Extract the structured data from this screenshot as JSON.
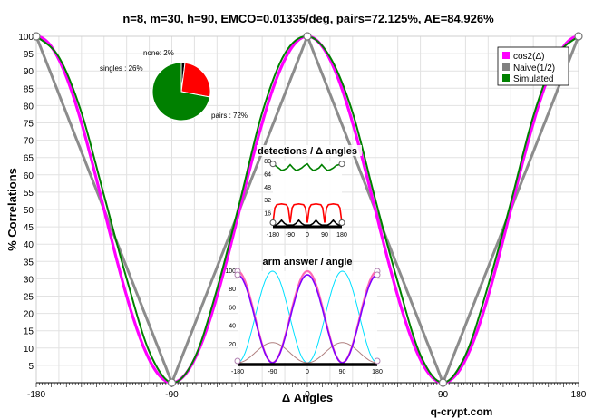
{
  "chart_data": [
    {
      "type": "line",
      "title": "n=8, m=30, h=90, EMCO=0.01335/deg, pairs=72.125%, AE=84.926%",
      "xlabel": "Δ Angles",
      "ylabel": "% Correlations",
      "xlim": [
        -180,
        180
      ],
      "ylim": [
        0,
        100
      ],
      "x_ticks": [
        "-180",
        "-90",
        "0",
        "90",
        "180"
      ],
      "y_ticks": [
        "5",
        "10",
        "15",
        "20",
        "25",
        "30",
        "35",
        "40",
        "45",
        "50",
        "55",
        "60",
        "65",
        "70",
        "75",
        "80",
        "85",
        "90",
        "95",
        "100"
      ],
      "grid": true,
      "legend_position": "top-right",
      "series": [
        {
          "name": "cos2(Δ)",
          "color": "#ff00ff",
          "formula": "100*cos^2(x)"
        },
        {
          "name": "Naive(1/2)",
          "color": "#808080",
          "formula": "100*|1 - 2*|x mod 180|/90| (triangle)"
        },
        {
          "name": "Simulated",
          "color": "#008000",
          "x": [
            -180,
            -165,
            -150,
            -135,
            -120,
            -105,
            -90,
            -75,
            -60,
            -45,
            -30,
            -15,
            0,
            15,
            30,
            45,
            60,
            75,
            90,
            105,
            120,
            135,
            150,
            165,
            180
          ],
          "values": [
            100,
            94,
            78,
            54,
            30,
            9,
            0,
            7,
            27,
            52,
            78,
            95,
            100,
            94,
            78,
            53,
            29,
            8,
            0,
            8,
            28,
            52,
            77,
            94,
            100
          ]
        }
      ],
      "credit": "q-crypt.com"
    },
    {
      "type": "pie",
      "labels": [
        "none: 2%",
        "singles : 26%",
        "pairs : 72%"
      ],
      "values": [
        2,
        26,
        72
      ],
      "colors": [
        "#000000",
        "#ff0000",
        "#008000"
      ]
    },
    {
      "type": "line",
      "title": "detections / Δ angles",
      "x_ticks": [
        "-180",
        "-90",
        "0",
        "90",
        "180"
      ],
      "y_ticks": [
        "16",
        "32",
        "48",
        "64",
        "80"
      ],
      "ylim": [
        0,
        80
      ],
      "series": [
        {
          "color": "#008000",
          "x": [
            -180,
            -150,
            -135,
            -120,
            -105,
            -90,
            -75,
            -60,
            -45,
            -30,
            -15,
            0,
            15,
            30,
            45,
            60,
            75,
            90,
            105,
            120,
            135,
            150,
            180
          ],
          "values": [
            77,
            72,
            69,
            70,
            72,
            76,
            72,
            69,
            70,
            72,
            75,
            77,
            72,
            69,
            70,
            72,
            76,
            72,
            69,
            70,
            72,
            75,
            77
          ]
        },
        {
          "color": "#ff0000",
          "x": [
            -180,
            -170,
            -160,
            -135,
            -110,
            -100,
            -90,
            -80,
            -70,
            -45,
            -20,
            -10,
            0,
            10,
            20,
            45,
            70,
            80,
            90,
            100,
            110,
            135,
            160,
            170,
            180
          ],
          "values": [
            5,
            23,
            27,
            28,
            27,
            23,
            5,
            23,
            27,
            28,
            27,
            23,
            5,
            23,
            27,
            28,
            27,
            23,
            5,
            23,
            27,
            28,
            27,
            23,
            5
          ]
        },
        {
          "color": "#000000",
          "x": [
            -180,
            -165,
            -150,
            -135,
            -120,
            -105,
            -90,
            -75,
            -60,
            -45,
            -30,
            -15,
            0,
            15,
            30,
            45,
            60,
            75,
            90,
            105,
            120,
            135,
            150,
            165,
            180
          ],
          "values": [
            2,
            2,
            4,
            8,
            4,
            2,
            2,
            2,
            4,
            8,
            4,
            2,
            2,
            2,
            4,
            8,
            4,
            2,
            2,
            2,
            4,
            8,
            4,
            2,
            2
          ]
        }
      ]
    },
    {
      "type": "line",
      "title": "arm answer / angle",
      "x_ticks": [
        "-180",
        "-90",
        "0",
        "90",
        "180"
      ],
      "y_ticks": [
        "20",
        "40",
        "60",
        "80",
        "100"
      ],
      "ylim": [
        0,
        100
      ],
      "series": [
        {
          "color": "#ff69b4",
          "formula": "100*cos^2(x)"
        },
        {
          "color": "#8000ff",
          "formula": "97*cos^2(x)"
        },
        {
          "color": "#00e0ff",
          "formula": "100*sin^2(x)"
        },
        {
          "color": "#b08080",
          "formula": "20*(sin^2(x) - small)"
        }
      ]
    }
  ]
}
